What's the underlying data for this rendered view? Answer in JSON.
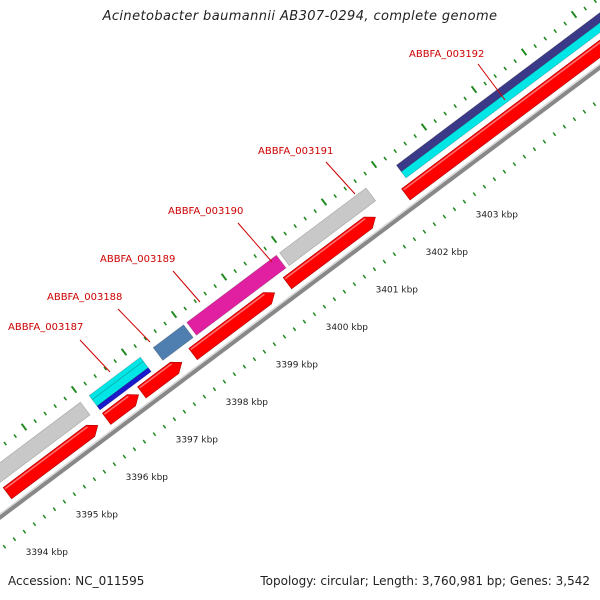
{
  "title": "Acinetobacter baumannii AB307-0294, complete genome",
  "footer": {
    "accession": "Accession: NC_011595",
    "summary": "Topology: circular; Length: 3,760,981 bp; Genes: 3,542"
  },
  "colors": {
    "cds": "#ff0000",
    "backbone": "#888888",
    "tick": "#1f8a1f",
    "label": "#cc0000",
    "cog_grey": "#c8c8c8",
    "cog_cyan": "#00e5e5",
    "cog_blue": "#1a1acc",
    "cog_steel": "#4f7fb0",
    "cog_pink": "#e020a0",
    "cog_navy": "#3a3a88"
  },
  "scale": {
    "unit": "kbp",
    "labels": [
      {
        "kbp": 3394,
        "text": "3394 kbp"
      },
      {
        "kbp": 3395,
        "text": "3395 kbp"
      },
      {
        "kbp": 3396,
        "text": "3396 kbp"
      },
      {
        "kbp": 3397,
        "text": "3397 kbp"
      },
      {
        "kbp": 3398,
        "text": "3398 kbp"
      },
      {
        "kbp": 3399,
        "text": "3399 kbp"
      },
      {
        "kbp": 3400,
        "text": "3400 kbp"
      },
      {
        "kbp": 3401,
        "text": "3401 kbp"
      },
      {
        "kbp": 3402,
        "text": "3402 kbp"
      },
      {
        "kbp": 3403,
        "text": "3403 kbp"
      }
    ]
  },
  "genes": [
    {
      "name": "ABBFA_003187"
    },
    {
      "name": "ABBFA_003188"
    },
    {
      "name": "ABBFA_003189"
    },
    {
      "name": "ABBFA_003190"
    },
    {
      "name": "ABBFA_003191"
    },
    {
      "name": "ABBFA_003192"
    }
  ]
}
